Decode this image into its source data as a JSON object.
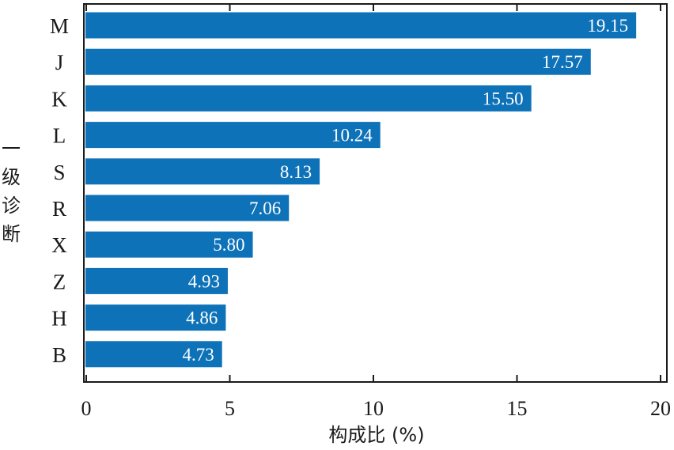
{
  "chart_data": {
    "type": "bar",
    "orientation": "horizontal",
    "categories": [
      "M",
      "J",
      "K",
      "L",
      "S",
      "R",
      "X",
      "Z",
      "H",
      "B"
    ],
    "values": [
      19.15,
      17.57,
      15.5,
      10.24,
      8.13,
      7.06,
      5.8,
      4.93,
      4.86,
      4.73
    ],
    "data_labels": [
      "19.15",
      "17.57",
      "15.50",
      "10.24",
      "8.13",
      "7.06",
      "5.80",
      "4.93",
      "4.86",
      "4.73"
    ],
    "xlabel": "构成比 (%)",
    "ylabel": "一级诊断",
    "xlim": [
      0,
      20
    ],
    "xticks": [
      0,
      5,
      10,
      15,
      20
    ],
    "grid": false,
    "bar_color": "#0e72b9"
  }
}
